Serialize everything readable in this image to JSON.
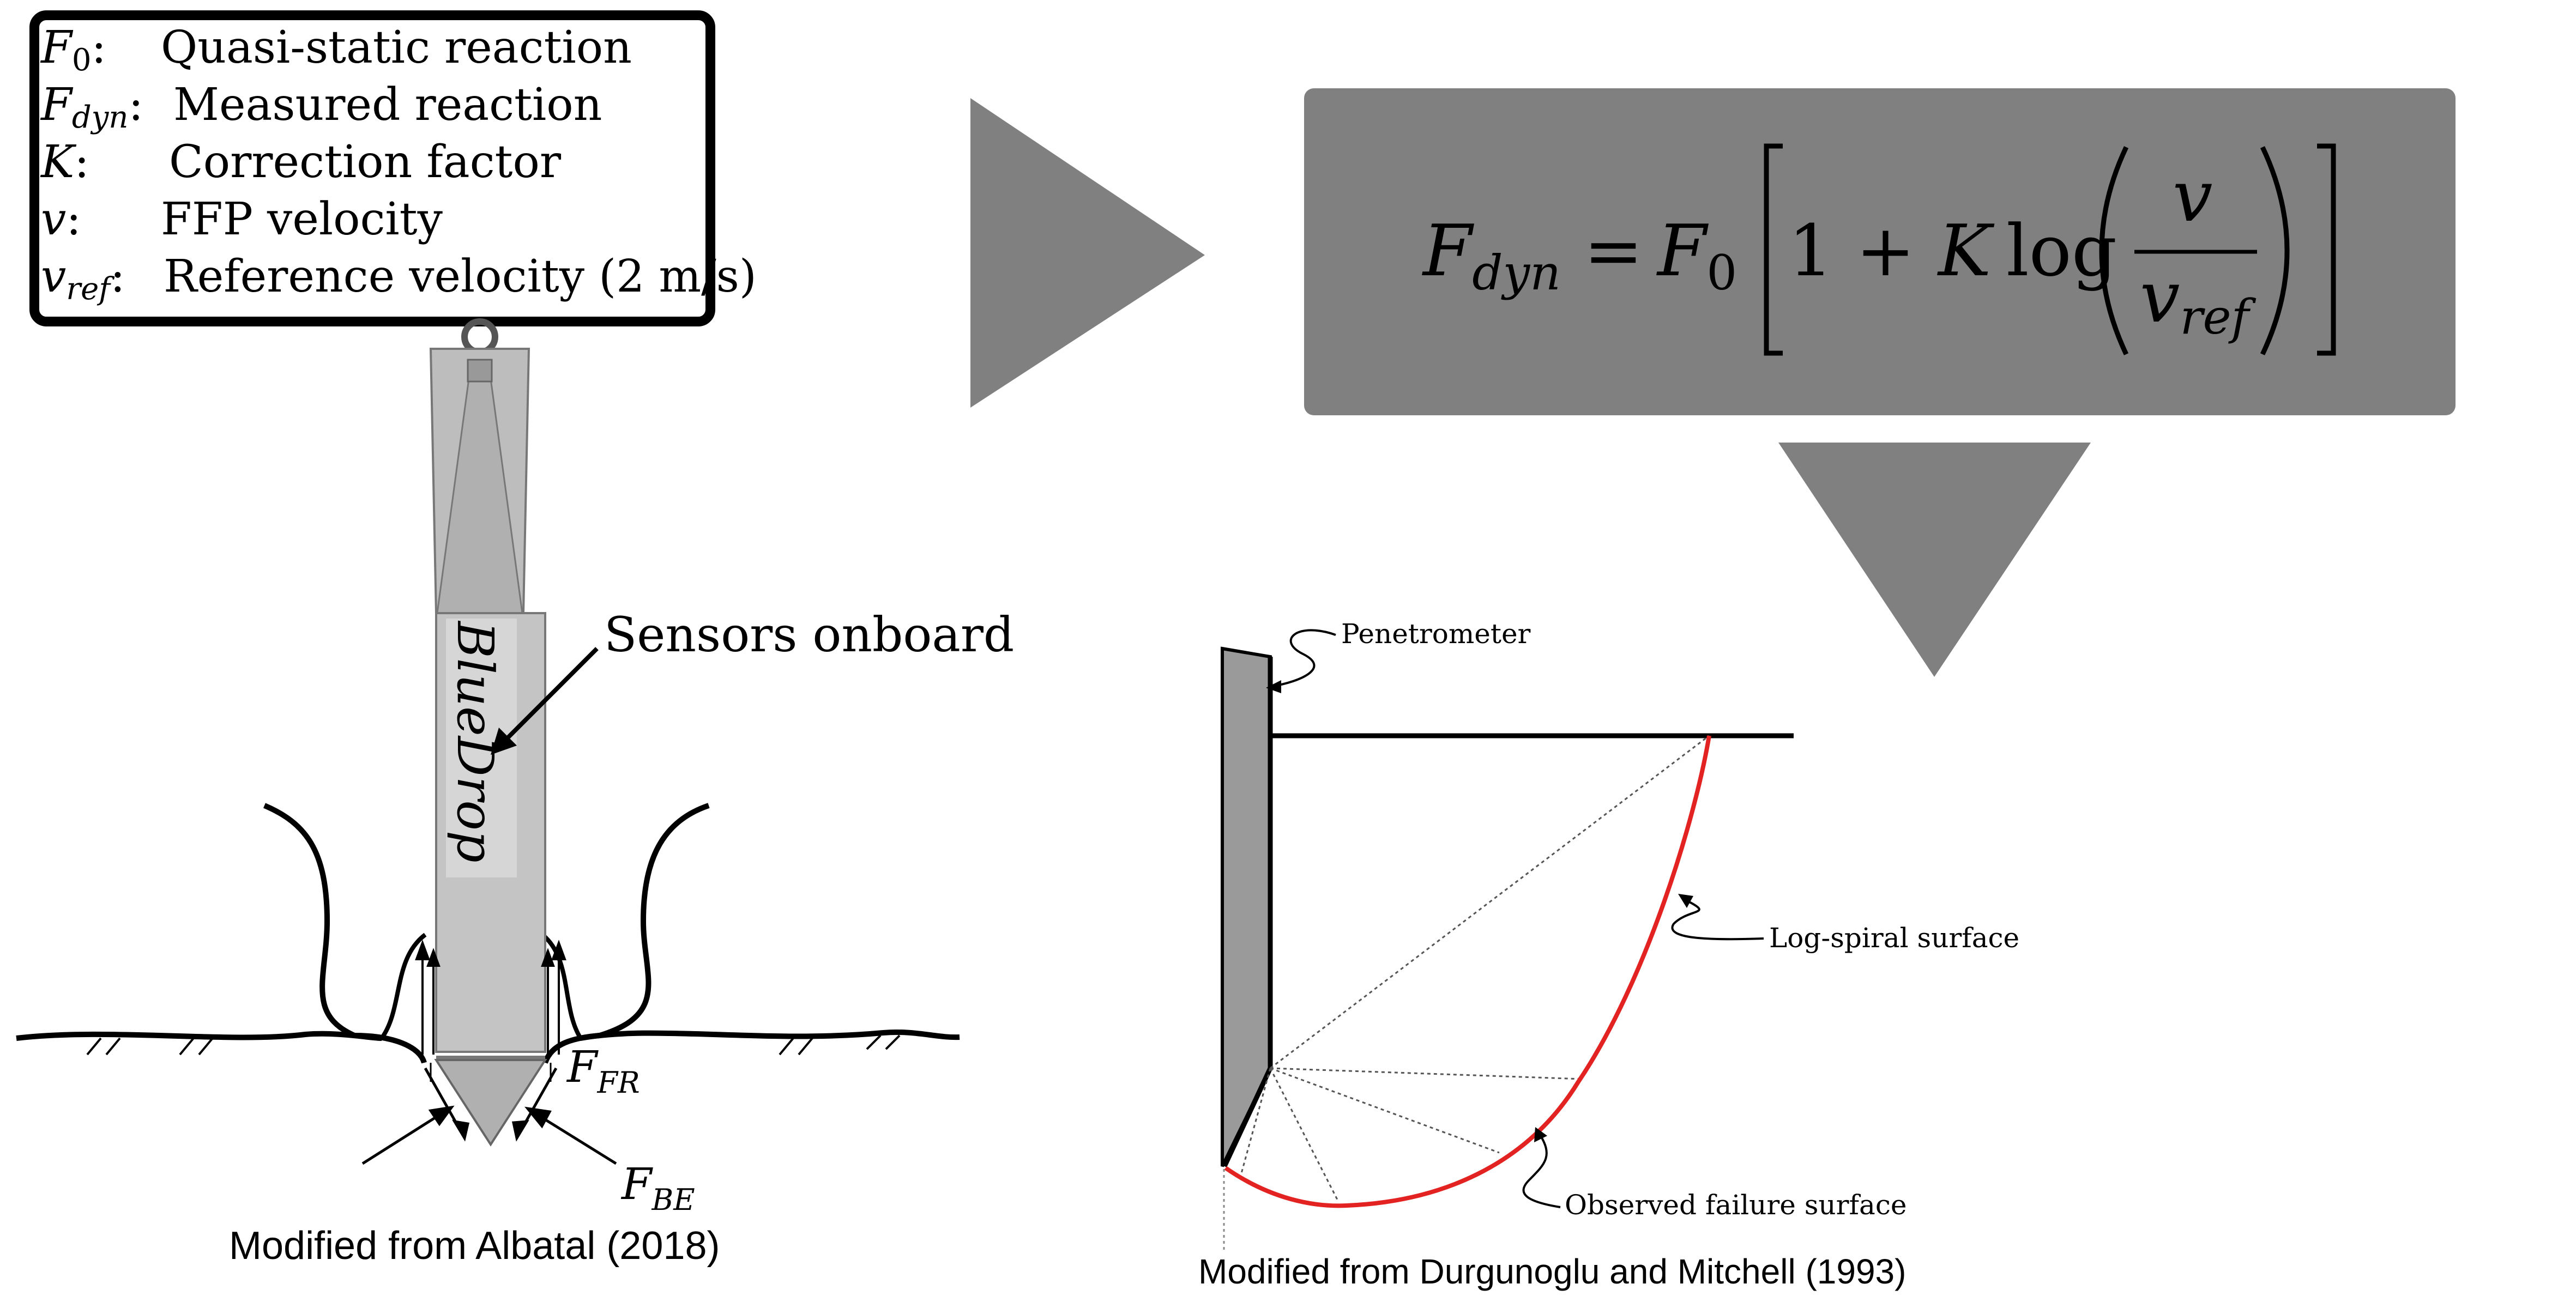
{
  "legend": {
    "items": [
      {
        "sym": "F",
        "sub": "0",
        "text": "Quasi-static reaction"
      },
      {
        "sym": "F",
        "sub": "dyn",
        "text": "Measured reaction"
      },
      {
        "sym": "K",
        "sub": "",
        "text": "Correction factor"
      },
      {
        "sym": "v",
        "sub": "",
        "text": "FFP velocity"
      },
      {
        "sym": "v",
        "sub": "ref",
        "text": "Reference velocity (2 m/s)"
      }
    ]
  },
  "equation": {
    "lhs_sym": "F",
    "lhs_sub": "dyn",
    "equals": "=",
    "rhs_sym": "F",
    "rhs_sub": "0",
    "one_plus": "1 + ",
    "k": "K",
    "log": "log",
    "num": "v",
    "den_sym": "v",
    "den_sub": "ref"
  },
  "penetrometer_diagram": {
    "device_label": "BlueDrop",
    "sensors_label": "Sensors onboard",
    "force_fr_sym": "F",
    "force_fr_sub": "FR",
    "force_be_sym": "F",
    "force_be_sub": "BE",
    "caption": "Modified from Albatal (2018)"
  },
  "failure_diagram": {
    "penetrometer_label": "Penetrometer",
    "log_spiral_label": "Log-spiral surface",
    "observed_label": "Observed failure surface",
    "caption": "Modified from Durgunoglu and Mitchell (1993)"
  },
  "colors": {
    "panel_gray": "#808080",
    "arrow_gray": "#808080",
    "failure_red": "#e32222",
    "body_gray": "#bdbdbd",
    "ink": "#000000"
  }
}
